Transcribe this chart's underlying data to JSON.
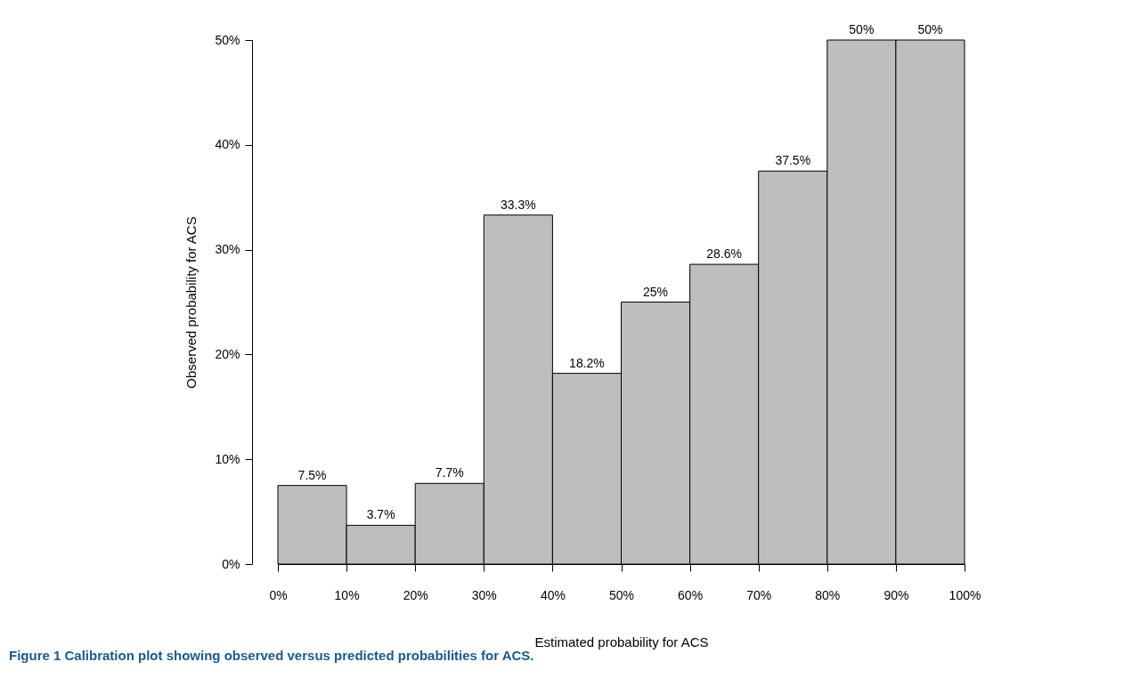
{
  "chart_data": {
    "type": "histogram",
    "xlabel": "Estimated probability for ACS",
    "ylabel": "Observed probability for ACS",
    "annotations": [
      "Figure 1 Calibration plot showing observed versus predicted probabilities for ACS."
    ],
    "bins": [
      0,
      10,
      20,
      30,
      40,
      50,
      60,
      70,
      80,
      90,
      100
    ],
    "values": [
      7.5,
      3.7,
      7.7,
      33.3,
      18.2,
      25,
      28.6,
      37.5,
      50,
      50
    ],
    "value_labels": [
      "7.5%",
      "3.7%",
      "7.7%",
      "33.3%",
      "18.2%",
      "25%",
      "28.6%",
      "37.5%",
      "50%",
      "50%"
    ],
    "color": "#bebebe",
    "xlim": [
      0,
      100
    ],
    "ylim": [
      0,
      50
    ],
    "xticks": [
      {
        "value": 0,
        "label": "0%"
      },
      {
        "value": 10,
        "label": "10%"
      },
      {
        "value": 20,
        "label": "20%"
      },
      {
        "value": 30,
        "label": "30%"
      },
      {
        "value": 40,
        "label": "40%"
      },
      {
        "value": 50,
        "label": "50%"
      },
      {
        "value": 60,
        "label": "60%"
      },
      {
        "value": 70,
        "label": "70%"
      },
      {
        "value": 80,
        "label": "80%"
      },
      {
        "value": 90,
        "label": "90%"
      },
      {
        "value": 100,
        "label": "100%"
      }
    ],
    "yticks": [
      {
        "value": 0,
        "label": "0%"
      },
      {
        "value": 10,
        "label": "10%"
      },
      {
        "value": 20,
        "label": "20%"
      },
      {
        "value": 30,
        "label": "30%"
      },
      {
        "value": 40,
        "label": "40%"
      },
      {
        "value": 50,
        "label": "50%"
      }
    ]
  }
}
